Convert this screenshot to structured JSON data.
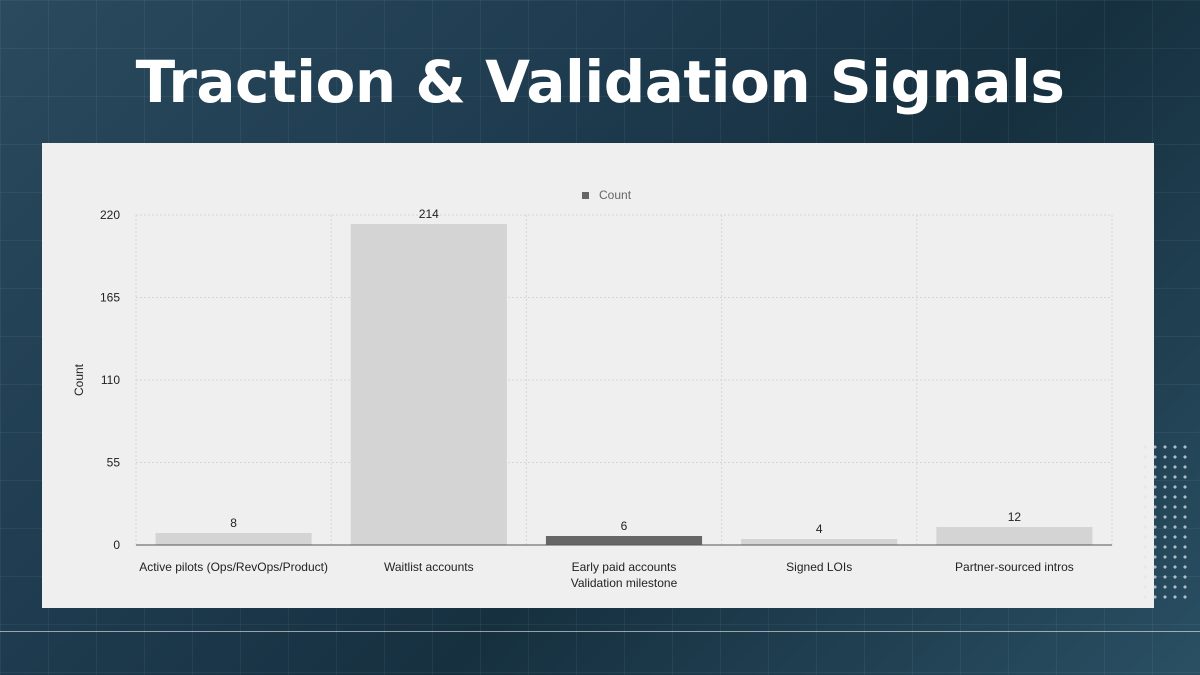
{
  "slide": {
    "title": "Traction & Validation Signals"
  },
  "chart_data": {
    "type": "bar",
    "legend": [
      "Count"
    ],
    "legend_position": "top-center",
    "xlabel": "Validation milestone",
    "ylabel": "Count",
    "ylim": [
      0,
      220
    ],
    "yticks": [
      0,
      55,
      110,
      165,
      220
    ],
    "grid": true,
    "categories": [
      "Active pilots (Ops/RevOps/Product)",
      "Waitlist accounts",
      "Early paid accounts",
      "Signed LOIs",
      "Partner-sourced intros"
    ],
    "series": [
      {
        "name": "Count",
        "values": [
          8,
          214,
          6,
          4,
          12
        ]
      }
    ],
    "bar_colors": [
      "#d4d4d4",
      "#d4d4d4",
      "#666666",
      "#d4d4d4",
      "#d4d4d4"
    ],
    "legend_color": "#666666"
  }
}
